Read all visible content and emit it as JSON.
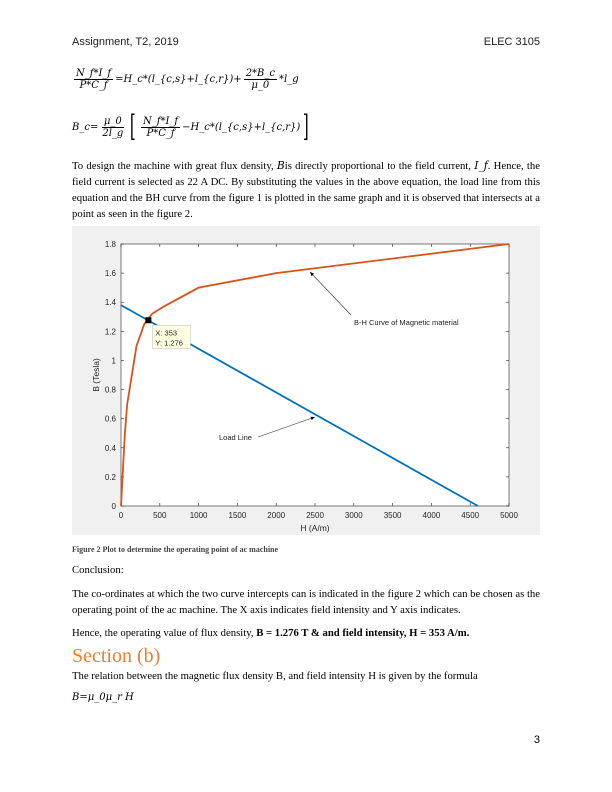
{
  "header": {
    "left": "Assignment, T2, 2019",
    "right": "ELEC 3105"
  },
  "equations": {
    "eq1": {
      "lhs_num": "N_f*I_f",
      "lhs_den": "P*C_f",
      "mid": "=H_c*(l_{c,s}+l_{c,r})+",
      "r_num": "2*B_c",
      "r_den": "μ_0",
      "tail": "*l_g"
    },
    "eq2": {
      "lhs": "B_c=",
      "f_num": "μ_0",
      "f_den": "2l_g",
      "in_num": "N_f*I_f",
      "in_den": "P*C_f",
      "in_tail": "−H_c*(l_{c,s}+l_{c,r})"
    }
  },
  "paragraph1": {
    "a": "To design the machine with great flux density, ",
    "b_sym": "B",
    "b": "is directly proportional to the field current, ",
    "if_sym": "I_f",
    "c": ". Hence, the field current is selected as 22 A DC. By substituting the values in the above equation, the load line from this equation and the BH curve from the figure 1 is plotted in the same graph and it is observed that intersects at a point as seen in the figure 2."
  },
  "chart_data": {
    "type": "line",
    "xlabel": "H (A/m)",
    "ylabel": "B (Tesla)",
    "xlim": [
      0,
      5000
    ],
    "ylim": [
      0,
      1.8
    ],
    "xticks": [
      "0",
      "500",
      "1000",
      "1500",
      "2000",
      "2500",
      "3000",
      "3500",
      "4000",
      "4500",
      "5000"
    ],
    "yticks": [
      "0",
      "0.2",
      "0.4",
      "0.6",
      "0.8",
      "1",
      "1.2",
      "1.4",
      "1.6",
      "1.8"
    ],
    "grid": false,
    "series": [
      {
        "color": "#d95319",
        "x": [
          0,
          20,
          50,
          80,
          200,
          300,
          400,
          550,
          1000,
          2000,
          5000
        ],
        "y": [
          0,
          0.2,
          0.5,
          0.7,
          1.1,
          1.25,
          1.32,
          1.37,
          1.5,
          1.6,
          1.8
        ]
      },
      {
        "color": "#0072bd",
        "x": [
          0,
          4600
        ],
        "y": [
          1.38,
          0
        ]
      }
    ],
    "datatip": {
      "x": 353,
      "y": 1.276,
      "x_label": "X: 353",
      "y_label": "Y: 1.276"
    },
    "annotations": [
      "B-H Curve of Magnetic material",
      "Load Line"
    ]
  },
  "caption": "Figure 2 Plot to determine the operating point of ac machine",
  "conclusion_label": "Conclusion:",
  "paragraph2": "The co-ordinates at which the two curve intercepts can is indicated in the figure 2 which can be chosen as the operating point of the ac machine. The X axis indicates field intensity and Y axis indicates.",
  "paragraph3": {
    "a": "Hence, the operating value of flux density, ",
    "b": "B = 1.276 T & and field intensity, H = 353 A/m."
  },
  "section_title": "Section (b)",
  "paragraph4": "The relation between the magnetic flux density B, and field intensity H is given by the formula",
  "formula": "B=μ_0μ_r H",
  "page_number": "3"
}
